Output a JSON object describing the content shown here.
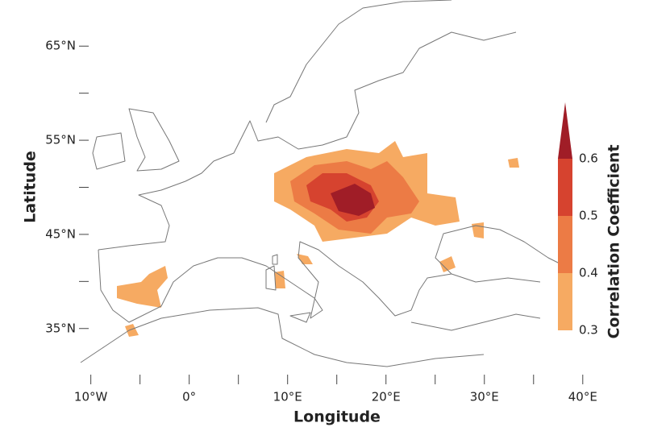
{
  "map": {
    "x_axis": {
      "label": "Longitude",
      "lim": [
        -11.2,
        41
      ],
      "ticks": [
        {
          "value": -10,
          "label": "10°W"
        },
        {
          "value": 0,
          "label": "0°"
        },
        {
          "value": 10,
          "label": "10°E"
        },
        {
          "value": 20,
          "label": "20°E"
        },
        {
          "value": 30,
          "label": "30°E"
        },
        {
          "value": 40,
          "label": "40°E"
        }
      ],
      "minor_ticks": [
        -5,
        5,
        15,
        25,
        35
      ]
    },
    "y_axis": {
      "label": "Latitude",
      "lim": [
        30.1,
        69.9
      ],
      "ticks": [
        {
          "value": 35,
          "label": "35°N"
        },
        {
          "value": 45,
          "label": "45°N"
        },
        {
          "value": 55,
          "label": "55°N"
        },
        {
          "value": 65,
          "label": "65°N"
        }
      ],
      "minor_ticks": [
        40,
        50,
        60
      ]
    },
    "colorbar": {
      "title": "Correlation Coefficient",
      "levels": [
        0.3,
        0.4,
        0.5,
        0.6
      ],
      "colors": [
        "#f6aa62",
        "#ec7b45",
        "#d6432f",
        "#a01d27"
      ]
    }
  }
}
